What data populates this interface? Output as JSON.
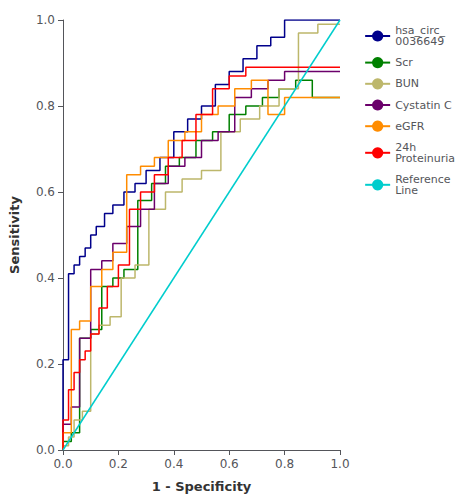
{
  "chart_data": {
    "type": "line",
    "xlabel": "1 - Specificity",
    "ylabel": "Sensitivity",
    "xlim": [
      0.0,
      1.0
    ],
    "ylim": [
      0.0,
      1.0
    ],
    "xticks": [
      {
        "value": 0.0,
        "label": "0.0"
      },
      0.2,
      0.4,
      0.6,
      0.8,
      {
        "value": 1.0,
        "label": "1.0"
      }
    ],
    "yticks": [
      {
        "value": 0.0,
        "label": "0.0"
      },
      0.2,
      0.4,
      0.6,
      0.8,
      {
        "value": 1.0,
        "label": "1.0"
      }
    ],
    "grid": false,
    "legend": "right",
    "series": [
      {
        "name": "hsa_circ_\n0036649",
        "color": "#00008B",
        "x": [
          0.0,
          0.0,
          0.02,
          0.02,
          0.04,
          0.04,
          0.06,
          0.06,
          0.08,
          0.08,
          0.1,
          0.1,
          0.12,
          0.12,
          0.15,
          0.15,
          0.18,
          0.18,
          0.22,
          0.22,
          0.26,
          0.26,
          0.3,
          0.3,
          0.35,
          0.35,
          0.4,
          0.4,
          0.45,
          0.45,
          0.5,
          0.5,
          0.55,
          0.55,
          0.6,
          0.6,
          0.65,
          0.65,
          0.7,
          0.7,
          0.75,
          0.75,
          0.8,
          0.8,
          1.0,
          1.0
        ],
        "values": [
          0.0,
          0.21,
          0.21,
          0.41,
          0.41,
          0.43,
          0.43,
          0.45,
          0.45,
          0.47,
          0.47,
          0.5,
          0.5,
          0.52,
          0.52,
          0.55,
          0.55,
          0.57,
          0.57,
          0.6,
          0.6,
          0.62,
          0.62,
          0.65,
          0.65,
          0.68,
          0.68,
          0.74,
          0.74,
          0.77,
          0.77,
          0.8,
          0.8,
          0.85,
          0.85,
          0.88,
          0.88,
          0.91,
          0.91,
          0.94,
          0.94,
          0.96,
          0.96,
          1.0,
          1.0,
          1.0
        ]
      },
      {
        "name": "Scr",
        "color": "#008000",
        "x": [
          0.0,
          0.0,
          0.03,
          0.03,
          0.06,
          0.06,
          0.1,
          0.1,
          0.14,
          0.14,
          0.18,
          0.18,
          0.22,
          0.22,
          0.27,
          0.27,
          0.32,
          0.32,
          0.37,
          0.37,
          0.42,
          0.42,
          0.48,
          0.48,
          0.54,
          0.54,
          0.6,
          0.6,
          0.66,
          0.66,
          0.72,
          0.72,
          0.78,
          0.78,
          0.84,
          0.84,
          0.9,
          0.9,
          1.0,
          1.0
        ],
        "values": [
          0.0,
          0.02,
          0.02,
          0.04,
          0.04,
          0.26,
          0.26,
          0.28,
          0.28,
          0.38,
          0.38,
          0.4,
          0.4,
          0.42,
          0.42,
          0.58,
          0.58,
          0.62,
          0.62,
          0.66,
          0.66,
          0.68,
          0.68,
          0.72,
          0.72,
          0.74,
          0.74,
          0.78,
          0.78,
          0.8,
          0.8,
          0.82,
          0.82,
          0.84,
          0.84,
          0.86,
          0.86,
          0.82,
          0.82,
          0.82
        ]
      },
      {
        "name": "BUN",
        "color": "#BDB76B",
        "x": [
          0.0,
          0.0,
          0.02,
          0.02,
          0.04,
          0.04,
          0.07,
          0.07,
          0.1,
          0.1,
          0.13,
          0.13,
          0.17,
          0.17,
          0.21,
          0.21,
          0.26,
          0.26,
          0.31,
          0.31,
          0.37,
          0.37,
          0.43,
          0.43,
          0.5,
          0.5,
          0.57,
          0.57,
          0.64,
          0.64,
          0.71,
          0.71,
          0.78,
          0.78,
          0.85,
          0.85,
          0.92,
          0.92,
          1.0,
          1.0
        ],
        "values": [
          0.0,
          0.01,
          0.01,
          0.03,
          0.03,
          0.07,
          0.07,
          0.09,
          0.09,
          0.27,
          0.27,
          0.29,
          0.29,
          0.31,
          0.31,
          0.4,
          0.4,
          0.43,
          0.43,
          0.56,
          0.56,
          0.6,
          0.6,
          0.63,
          0.63,
          0.65,
          0.65,
          0.74,
          0.74,
          0.77,
          0.77,
          0.8,
          0.8,
          0.84,
          0.84,
          0.97,
          0.97,
          0.99,
          0.99,
          0.99
        ]
      },
      {
        "name": "Cystatin C",
        "color": "#6B006B",
        "x": [
          0.0,
          0.0,
          0.03,
          0.03,
          0.06,
          0.06,
          0.1,
          0.1,
          0.14,
          0.14,
          0.18,
          0.18,
          0.23,
          0.23,
          0.28,
          0.28,
          0.33,
          0.33,
          0.38,
          0.38,
          0.44,
          0.44,
          0.5,
          0.5,
          0.56,
          0.56,
          0.62,
          0.62,
          0.68,
          0.68,
          0.74,
          0.74,
          0.8,
          0.8,
          1.0,
          1.0
        ],
        "values": [
          0.0,
          0.06,
          0.06,
          0.1,
          0.1,
          0.26,
          0.26,
          0.42,
          0.42,
          0.44,
          0.44,
          0.48,
          0.48,
          0.52,
          0.52,
          0.56,
          0.56,
          0.62,
          0.62,
          0.66,
          0.66,
          0.68,
          0.68,
          0.72,
          0.72,
          0.74,
          0.74,
          0.82,
          0.82,
          0.84,
          0.84,
          0.86,
          0.86,
          0.88,
          0.88,
          0.88
        ]
      },
      {
        "name": "eGFR",
        "color": "#FF8C00",
        "x": [
          0.0,
          0.0,
          0.03,
          0.03,
          0.06,
          0.06,
          0.1,
          0.1,
          0.14,
          0.14,
          0.18,
          0.18,
          0.23,
          0.23,
          0.28,
          0.28,
          0.33,
          0.33,
          0.38,
          0.38,
          0.44,
          0.44,
          0.5,
          0.5,
          0.56,
          0.56,
          0.62,
          0.62,
          0.68,
          0.68,
          0.74,
          0.74,
          0.8,
          0.8,
          1.0,
          1.0
        ],
        "values": [
          0.0,
          0.04,
          0.04,
          0.28,
          0.28,
          0.3,
          0.3,
          0.38,
          0.38,
          0.42,
          0.42,
          0.46,
          0.46,
          0.64,
          0.64,
          0.66,
          0.66,
          0.68,
          0.68,
          0.72,
          0.72,
          0.74,
          0.74,
          0.78,
          0.78,
          0.8,
          0.8,
          0.84,
          0.84,
          0.86,
          0.86,
          0.78,
          0.78,
          0.82,
          0.82,
          0.82
        ]
      },
      {
        "name": "24h\nProteinuria",
        "color": "#FF0000",
        "x": [
          0.0,
          0.0,
          0.02,
          0.02,
          0.04,
          0.04,
          0.06,
          0.06,
          0.08,
          0.08,
          0.1,
          0.1,
          0.13,
          0.13,
          0.16,
          0.16,
          0.2,
          0.2,
          0.24,
          0.24,
          0.28,
          0.28,
          0.33,
          0.33,
          0.38,
          0.38,
          0.43,
          0.43,
          0.48,
          0.48,
          0.54,
          0.54,
          0.6,
          0.6,
          0.66,
          0.66,
          0.72,
          0.72,
          0.78,
          0.78,
          0.84,
          0.84,
          0.9,
          0.9,
          1.0,
          1.0
        ],
        "values": [
          0.0,
          0.07,
          0.07,
          0.14,
          0.14,
          0.18,
          0.18,
          0.21,
          0.21,
          0.23,
          0.23,
          0.27,
          0.27,
          0.33,
          0.33,
          0.38,
          0.38,
          0.43,
          0.43,
          0.56,
          0.56,
          0.6,
          0.6,
          0.64,
          0.64,
          0.68,
          0.68,
          0.72,
          0.72,
          0.78,
          0.78,
          0.84,
          0.84,
          0.87,
          0.87,
          0.89,
          0.89,
          0.89,
          0.89,
          0.89,
          0.89,
          0.89,
          0.89,
          0.89,
          0.89,
          0.89
        ]
      },
      {
        "name": "Reference\nLine",
        "color": "#00CDCD",
        "x": [
          0,
          1
        ],
        "values": [
          0,
          1
        ]
      }
    ]
  }
}
